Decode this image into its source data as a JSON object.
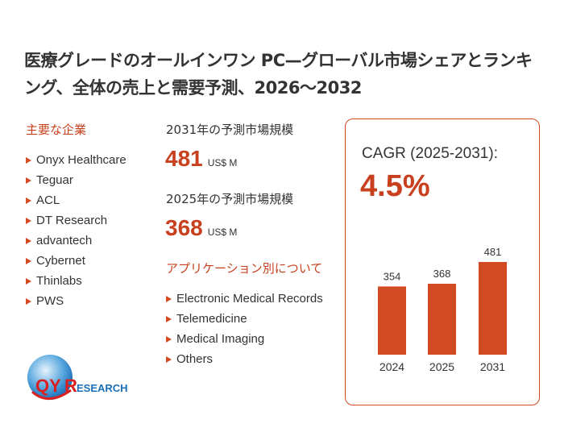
{
  "title": "医療グレードのオールインワン PC—グローバル市場シェアとランキング、全体の売上と需要予測、2026～2032",
  "companies": {
    "heading": "主要な企業",
    "items": [
      "Onyx Healthcare",
      "Teguar",
      "ACL",
      "DT Research",
      "advantech",
      "Cybernet",
      "Thinlabs",
      "PWS"
    ]
  },
  "forecast_2031": {
    "label": "2031年の予測市場規模",
    "value": "481",
    "unit": "US$ M"
  },
  "forecast_2025": {
    "label": "2025年の予測市場規模",
    "value": "368",
    "unit": "US$ M"
  },
  "applications": {
    "heading": "アプリケーション別について",
    "items": [
      "Electronic Medical Records",
      "Telemedicine",
      "Medical Imaging",
      "Others"
    ]
  },
  "cagr": {
    "label": "CAGR (2025-2031):",
    "value": "4.5%"
  },
  "colors": {
    "accent": "#d24a22",
    "text": "#333333"
  },
  "logo": {
    "text": "QYResearch"
  },
  "chart_data": {
    "type": "bar",
    "categories": [
      "2024",
      "2025",
      "2031"
    ],
    "values": [
      354,
      368,
      481
    ],
    "data_labels": [
      "354",
      "368",
      "481"
    ],
    "ylim": [
      0,
      481
    ],
    "grid": false,
    "color": "#d24a22"
  }
}
